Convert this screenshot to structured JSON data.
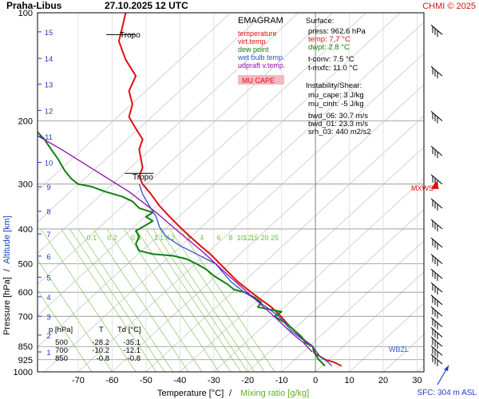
{
  "header": {
    "station": "Praha-Libus",
    "datetime": "27.10.2025 12 UTC",
    "credit": "CHMI © 2025"
  },
  "legend": {
    "title": "EMAGRAM",
    "items": [
      {
        "label": "temperature",
        "color": "#e01010"
      },
      {
        "label": "virt.temp.",
        "color": "#e01010"
      },
      {
        "label": "dew point",
        "color": "#108010"
      },
      {
        "label": "wet bulb temp.",
        "color": "#3050d0"
      },
      {
        "label": "udpraft v.temp.",
        "color": "#9010b0"
      }
    ],
    "cape_label": "MU CAPE"
  },
  "info": {
    "surface_heading": "Surface:",
    "surface": [
      "press: 962.6 hPa",
      "temp: 7.7 °C",
      "dwpt: 2.8 °C"
    ],
    "surface_colors": [
      "#000000",
      "#e01010",
      "#108010"
    ],
    "conv": [
      "t-conv: 7.5 °C",
      "t-mxfc: 11.0 °C"
    ],
    "shear_heading": "Instability/Shear:",
    "shear": [
      "mu_cape: 3 J/kg",
      "mu_cinh: -5 J/kg",
      "bwd_06: 30.7 m/s",
      "bwd_01: 23.3 m/s",
      "srh_03: 440 m2/s2"
    ]
  },
  "axes": {
    "ylabel_pressure": "Pressure [hPa]",
    "ylabel_sep": "/",
    "ylabel_alt": "Altitude [km]",
    "xlabel_temp": "Temperature [°C]",
    "xlabel_sep": "/",
    "xlabel_mix": "Mixing ratio [g/kg]",
    "sfc_label": "SFC: 304 m ASL"
  },
  "markers": {
    "tropo_upper": "Tropo",
    "tropo_lower": "Tropo",
    "mxws": "MXWS",
    "wbzl": "WBZL"
  },
  "table": {
    "headers": [
      "p [hPa]",
      "T",
      "Td [°C]"
    ],
    "rows": [
      [
        "500",
        "-28.2",
        "-35.1"
      ],
      [
        "700",
        "-10.2",
        "-12.1"
      ],
      [
        "850",
        "-0.8",
        "-0.8"
      ]
    ]
  },
  "chart_data": {
    "type": "line",
    "title": "EMAGRAM",
    "xlabel": "Temperature [°C] / Mixing ratio [g/kg]",
    "ylabel": "Pressure [hPa] / Altitude [km]",
    "x_range": [
      -82,
      32
    ],
    "y_range_hpa": [
      1000,
      100
    ],
    "y_log": true,
    "x_ticks": [
      -70,
      -60,
      -50,
      -40,
      -30,
      -20,
      -10,
      0,
      10,
      20,
      30
    ],
    "pressure_ticks": [
      100,
      200,
      300,
      400,
      500,
      600,
      700,
      850,
      925,
      1000
    ],
    "altitude_ticks": [
      {
        "km": "1",
        "p": 880
      },
      {
        "km": "2",
        "p": 790
      },
      {
        "km": "3",
        "p": 700
      },
      {
        "km": "4",
        "p": 618
      },
      {
        "km": "5",
        "p": 545
      },
      {
        "km": "6",
        "p": 476
      },
      {
        "km": "7",
        "p": 413
      },
      {
        "km": "8",
        "p": 357
      },
      {
        "km": "9",
        "p": 305
      },
      {
        "km": "10",
        "p": 261
      },
      {
        "km": "11",
        "p": 221
      },
      {
        "km": "12",
        "p": 187
      },
      {
        "km": "13",
        "p": 158
      },
      {
        "km": "14",
        "p": 134
      },
      {
        "km": "15",
        "p": 113
      }
    ],
    "mixing_ratio_labels": [
      "0.1",
      "0.2",
      "0.5",
      "1",
      "1.4",
      "2",
      "3",
      "4",
      "6",
      "8",
      "10",
      "12",
      "15",
      "20",
      "25"
    ],
    "mixing_ratio_label_temps": [
      -66,
      -60,
      -53,
      -47,
      -44.5,
      -42,
      -37.5,
      -33.5,
      -28.5,
      -25,
      -22,
      -20,
      -18,
      -15,
      -12
    ],
    "series": [
      {
        "name": "temperature",
        "color": "#e01010",
        "points": [
          [
            7.7,
            962.6
          ],
          [
            5.5,
            940
          ],
          [
            3,
            925
          ],
          [
            0,
            890
          ],
          [
            -0.8,
            850
          ],
          [
            -3,
            820
          ],
          [
            -5.5,
            780
          ],
          [
            -8,
            740
          ],
          [
            -10.2,
            700
          ],
          [
            -13,
            660
          ],
          [
            -16,
            630
          ],
          [
            -19,
            600
          ],
          [
            -23,
            560
          ],
          [
            -28.2,
            500
          ],
          [
            -31,
            470
          ],
          [
            -34,
            445
          ],
          [
            -37,
            420
          ],
          [
            -40,
            395
          ],
          [
            -43,
            370
          ],
          [
            -46,
            345
          ],
          [
            -48.5,
            320
          ],
          [
            -51,
            300
          ],
          [
            -52,
            285
          ],
          [
            -51,
            270
          ],
          [
            -51.5,
            255
          ],
          [
            -52,
            240
          ],
          [
            -51,
            225
          ],
          [
            -53,
            210
          ],
          [
            -55,
            195
          ],
          [
            -54,
            180
          ],
          [
            -55,
            165
          ],
          [
            -53,
            150
          ],
          [
            -56,
            135
          ],
          [
            -58,
            120
          ],
          [
            -57,
            110
          ],
          [
            -56,
            100
          ]
        ]
      },
      {
        "name": "dew point",
        "color": "#108010",
        "points": [
          [
            2.8,
            962.6
          ],
          [
            2,
            945
          ],
          [
            1,
            925
          ],
          [
            -0.5,
            880
          ],
          [
            -0.8,
            850
          ],
          [
            -3,
            830
          ],
          [
            -4,
            800
          ],
          [
            -6,
            770
          ],
          [
            -8,
            740
          ],
          [
            -10,
            720
          ],
          [
            -12.1,
            700
          ],
          [
            -10,
            680
          ],
          [
            -17,
            660
          ],
          [
            -16,
            640
          ],
          [
            -18,
            620
          ],
          [
            -21,
            600
          ],
          [
            -24,
            590
          ],
          [
            -26,
            570
          ],
          [
            -28,
            555
          ],
          [
            -30,
            540
          ],
          [
            -32,
            520
          ],
          [
            -35.1,
            500
          ],
          [
            -38,
            485
          ],
          [
            -42,
            475
          ],
          [
            -48,
            470
          ],
          [
            -52,
            460
          ],
          [
            -53,
            440
          ],
          [
            -52,
            420
          ],
          [
            -53,
            405
          ],
          [
            -50,
            390
          ],
          [
            -48,
            380
          ],
          [
            -50,
            370
          ],
          [
            -48,
            360
          ],
          [
            -52,
            350
          ],
          [
            -54,
            335
          ],
          [
            -57,
            325
          ],
          [
            -62,
            315
          ],
          [
            -66,
            305
          ],
          [
            -70,
            300
          ],
          [
            -72,
            290
          ],
          [
            -74,
            275
          ],
          [
            -76,
            255
          ],
          [
            -78,
            240
          ],
          [
            -80,
            225
          ],
          [
            -82,
            215
          ]
        ]
      },
      {
        "name": "wet bulb temp.",
        "color": "#3050d0",
        "points": [
          [
            4.8,
            962.6
          ],
          [
            3.5,
            935
          ],
          [
            1.5,
            910
          ],
          [
            -0.8,
            850
          ],
          [
            -4,
            810
          ],
          [
            -7,
            770
          ],
          [
            -10.8,
            700
          ],
          [
            -14.5,
            660
          ],
          [
            -18,
            625
          ],
          [
            -21,
            600
          ],
          [
            -25,
            560
          ],
          [
            -29.5,
            500
          ],
          [
            -35,
            470
          ],
          [
            -40,
            445
          ],
          [
            -44,
            420
          ],
          [
            -46,
            395
          ],
          [
            -47,
            370
          ],
          [
            -49,
            345
          ],
          [
            -51,
            320
          ],
          [
            -52,
            300
          ]
        ]
      },
      {
        "name": "udpraft v.temp.",
        "color": "#9010b0",
        "points": [
          [
            -1,
            880
          ],
          [
            -3.5,
            830
          ],
          [
            -7,
            780
          ],
          [
            -11.5,
            710
          ],
          [
            -16,
            650
          ],
          [
            -21,
            590
          ],
          [
            -27,
            525
          ],
          [
            -33,
            465
          ],
          [
            -40,
            410
          ],
          [
            -47,
            360
          ],
          [
            -55,
            315
          ],
          [
            -65,
            275
          ],
          [
            -75,
            240
          ],
          [
            -82,
            220
          ]
        ]
      }
    ],
    "tropopause_hpa": [
      115,
      280
    ],
    "wind_levels_hpa": [
      950,
      900,
      850,
      800,
      750,
      700,
      650,
      600,
      550,
      500,
      450,
      400,
      350,
      300,
      250,
      200,
      150,
      115
    ]
  }
}
